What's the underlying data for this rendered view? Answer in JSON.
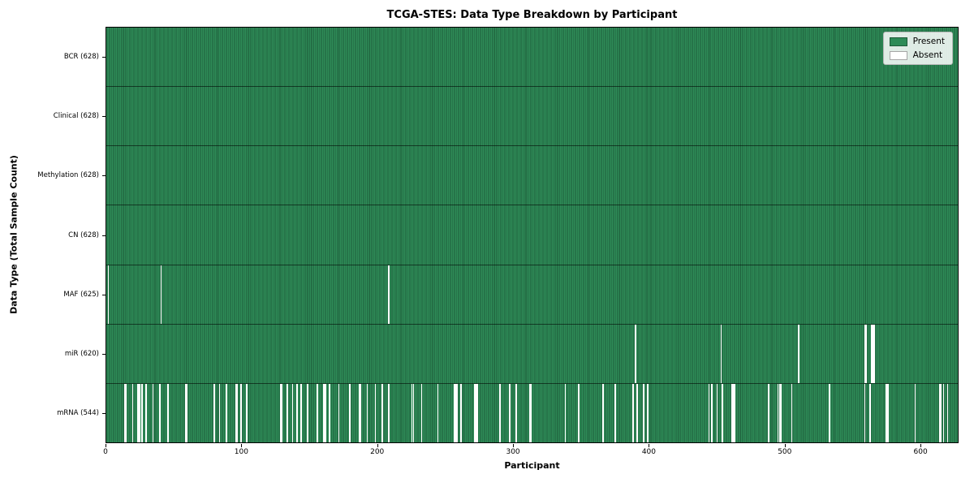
{
  "chart_data": {
    "type": "heatmap",
    "title": "TCGA-STES: Data Type Breakdown by Participant",
    "xlabel": "Participant",
    "ylabel": "Data Type (Total Sample Count)",
    "x_range": [
      0,
      628
    ],
    "x_ticks": [
      0,
      100,
      200,
      300,
      400,
      500,
      600
    ],
    "total_participants": 628,
    "grid": false,
    "legend": {
      "position": "upper right",
      "entries": [
        {
          "label": "Present",
          "color": "#2e8b57"
        },
        {
          "label": "Absent",
          "color": "#ffffff"
        }
      ]
    },
    "colors": {
      "present_fill": "#2e8b57",
      "present_edge": "#1e5e3b",
      "absent_fill": "#ffffff",
      "spine": "#000000"
    },
    "rows": [
      {
        "label": "BCR (628)",
        "data_type": "BCR",
        "present_count": 628,
        "absent_participants": []
      },
      {
        "label": "Clinical (628)",
        "data_type": "Clinical",
        "present_count": 628,
        "absent_participants": []
      },
      {
        "label": "Methylation (628)",
        "data_type": "Methylation",
        "present_count": 628,
        "absent_participants": []
      },
      {
        "label": "CN (628)",
        "data_type": "CN",
        "present_count": 628,
        "absent_participants": []
      },
      {
        "label": "MAF (625)",
        "data_type": "MAF",
        "present_count": 625,
        "absent_participants": [
          1,
          40,
          208
        ]
      },
      {
        "label": "miR (620)",
        "data_type": "miR",
        "present_count": 620,
        "absent_participants": [
          390,
          453,
          510,
          559,
          560,
          564,
          565,
          566
        ]
      },
      {
        "label": "mRNA (544)",
        "data_type": "mRNA",
        "present_count": 544,
        "absent_participants": [
          13,
          14,
          19,
          23,
          24,
          26,
          29,
          34,
          39,
          45,
          58,
          59,
          79,
          83,
          88,
          95,
          96,
          99,
          103,
          128,
          129,
          133,
          137,
          140,
          143,
          148,
          155,
          160,
          161,
          164,
          171,
          179,
          186,
          187,
          192,
          198,
          203,
          208,
          225,
          226,
          232,
          244,
          256,
          257,
          258,
          261,
          271,
          272,
          273,
          290,
          297,
          302,
          312,
          313,
          338,
          348,
          366,
          375,
          388,
          391,
          396,
          399,
          444,
          446,
          450,
          454,
          461,
          462,
          463,
          488,
          495,
          496,
          497,
          505,
          533,
          559,
          563,
          575,
          576,
          596,
          614,
          615,
          617,
          620
        ]
      }
    ]
  }
}
